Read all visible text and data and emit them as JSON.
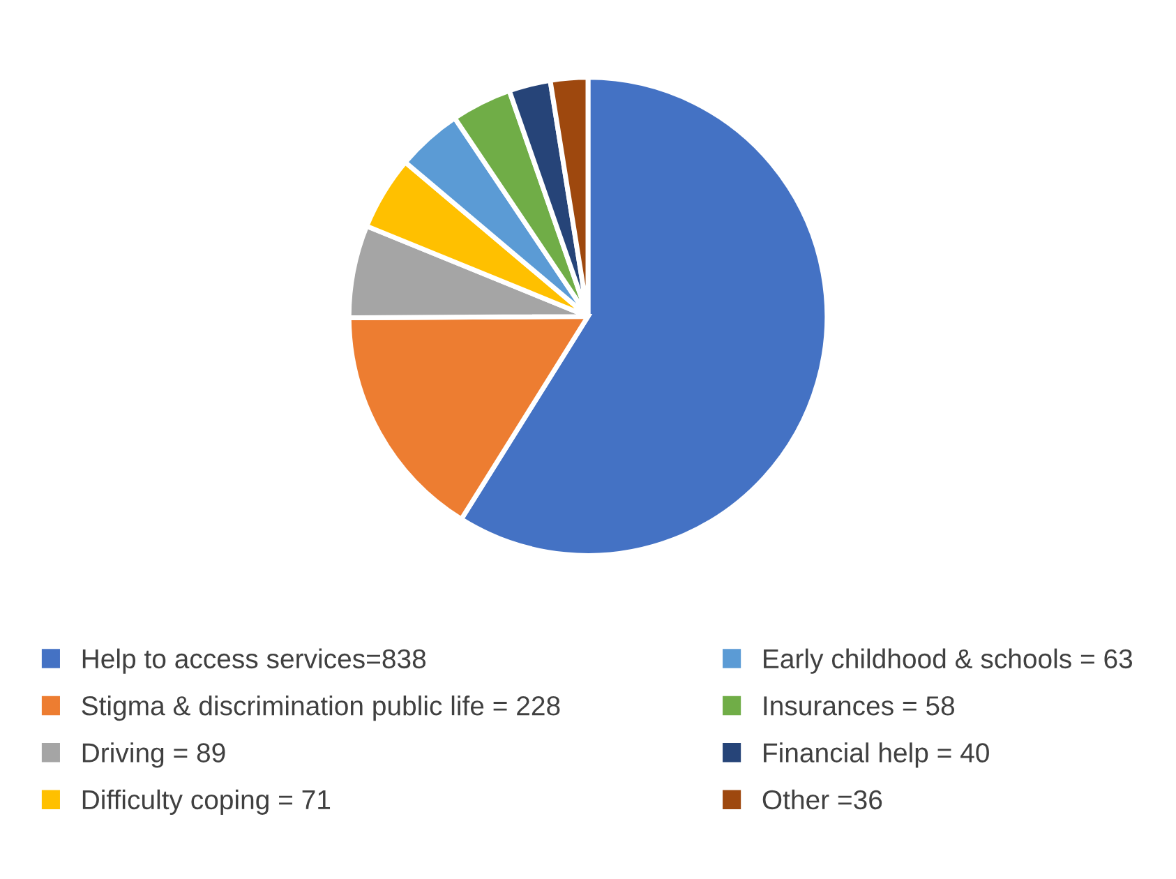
{
  "chart_data": {
    "type": "pie",
    "categories": [
      "Help to access services=838",
      "Stigma & discrimination public life = 228",
      "Driving = 89",
      "Difficulty coping = 71",
      "Early childhood & schools = 63",
      "Insurances = 58",
      "Financial help = 40",
      "Other =36"
    ],
    "values": [
      838,
      228,
      89,
      71,
      63,
      58,
      40,
      36
    ],
    "colors": [
      "#4472c4",
      "#ed7d31",
      "#a5a5a5",
      "#ffc000",
      "#5b9bd5",
      "#70ad47",
      "#264478",
      "#9e480e"
    ],
    "legend": "bottom"
  }
}
